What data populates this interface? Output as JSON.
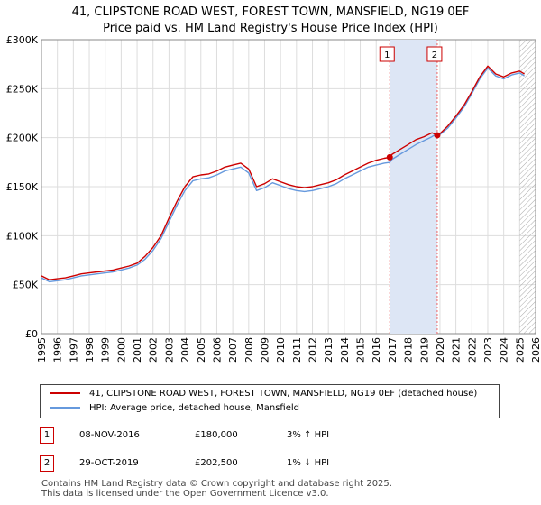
{
  "title": {
    "line1": "41, CLIPSTONE ROAD WEST, FOREST TOWN, MANSFIELD, NG19 0EF",
    "line2": "Price paid vs. HM Land Registry's House Price Index (HPI)"
  },
  "colors": {
    "property": "#cc0000",
    "hpi": "#6699dd",
    "shade": "#dde6f5",
    "grid": "#dddddd",
    "marker_line": "#ee6666"
  },
  "chart_data": {
    "type": "line",
    "title": "41, CLIPSTONE ROAD WEST, FOREST TOWN, MANSFIELD, NG19 0EF",
    "subtitle": "Price paid vs. HM Land Registry's House Price Index (HPI)",
    "xlabel": "",
    "ylabel": "",
    "xlim": [
      1995,
      2026
    ],
    "ylim": [
      0,
      300000
    ],
    "x_ticks": [
      "1995",
      "1996",
      "1997",
      "1998",
      "1999",
      "2000",
      "2001",
      "2002",
      "2003",
      "2004",
      "2005",
      "2006",
      "2007",
      "2008",
      "2009",
      "2010",
      "2011",
      "2012",
      "2013",
      "2014",
      "2015",
      "2016",
      "2017",
      "2018",
      "2019",
      "2020",
      "2021",
      "2022",
      "2023",
      "2024",
      "2025",
      "2026"
    ],
    "y_ticks": [
      {
        "value": 0,
        "label": "£0"
      },
      {
        "value": 50000,
        "label": "£50K"
      },
      {
        "value": 100000,
        "label": "£100K"
      },
      {
        "value": 150000,
        "label": "£150K"
      },
      {
        "value": 200000,
        "label": "£200K"
      },
      {
        "value": 250000,
        "label": "£250K"
      },
      {
        "value": 300000,
        "label": "£300K"
      }
    ],
    "grid": true,
    "series": [
      {
        "name": "41, CLIPSTONE ROAD WEST, FOREST TOWN, MANSFIELD, NG19 0EF (detached house)",
        "color": "#cc0000",
        "x": [
          1995.0,
          1995.5,
          1996.0,
          1996.5,
          1997.0,
          1997.5,
          1998.0,
          1998.5,
          1999.0,
          1999.5,
          2000.0,
          2000.5,
          2001.0,
          2001.5,
          2002.0,
          2002.5,
          2003.0,
          2003.5,
          2004.0,
          2004.5,
          2005.0,
          2005.5,
          2006.0,
          2006.5,
          2007.0,
          2007.5,
          2008.0,
          2008.5,
          2009.0,
          2009.5,
          2010.0,
          2010.5,
          2011.0,
          2011.5,
          2012.0,
          2012.5,
          2013.0,
          2013.5,
          2014.0,
          2014.5,
          2015.0,
          2015.5,
          2016.0,
          2016.5,
          2016.85,
          2017.0,
          2017.5,
          2018.0,
          2018.5,
          2019.0,
          2019.5,
          2019.83,
          2020.0,
          2020.5,
          2021.0,
          2021.5,
          2022.0,
          2022.5,
          2023.0,
          2023.5,
          2024.0,
          2024.5,
          2025.0,
          2025.3
        ],
        "values": [
          59000,
          55000,
          56000,
          57000,
          59000,
          61000,
          62000,
          63000,
          64000,
          65000,
          67000,
          69000,
          72000,
          79000,
          88000,
          100000,
          118000,
          135000,
          150000,
          160000,
          162000,
          163000,
          166000,
          170000,
          172000,
          174000,
          168000,
          150000,
          153000,
          158000,
          155000,
          152000,
          150000,
          149000,
          150000,
          152000,
          154000,
          157000,
          162000,
          166000,
          170000,
          174000,
          177000,
          179000,
          180000,
          183000,
          188000,
          193000,
          198000,
          201000,
          205000,
          202500,
          204000,
          212000,
          222000,
          233000,
          247000,
          262000,
          273000,
          265000,
          262000,
          266000,
          268000,
          265000
        ]
      },
      {
        "name": "HPI: Average price, detached house, Mansfield",
        "color": "#6699dd",
        "x": [
          1995.0,
          1995.5,
          1996.0,
          1996.5,
          1997.0,
          1997.5,
          1998.0,
          1998.5,
          1999.0,
          1999.5,
          2000.0,
          2000.5,
          2001.0,
          2001.5,
          2002.0,
          2002.5,
          2003.0,
          2003.5,
          2004.0,
          2004.5,
          2005.0,
          2005.5,
          2006.0,
          2006.5,
          2007.0,
          2007.5,
          2008.0,
          2008.5,
          2009.0,
          2009.5,
          2010.0,
          2010.5,
          2011.0,
          2011.5,
          2012.0,
          2012.5,
          2013.0,
          2013.5,
          2014.0,
          2014.5,
          2015.0,
          2015.5,
          2016.0,
          2016.5,
          2016.85,
          2017.0,
          2017.5,
          2018.0,
          2018.5,
          2019.0,
          2019.5,
          2019.83,
          2020.0,
          2020.5,
          2021.0,
          2021.5,
          2022.0,
          2022.5,
          2023.0,
          2023.5,
          2024.0,
          2024.5,
          2025.0,
          2025.3
        ],
        "values": [
          57000,
          53000,
          54000,
          55000,
          57000,
          59000,
          60000,
          61000,
          62000,
          63000,
          65000,
          67000,
          70000,
          76000,
          85000,
          97000,
          114000,
          131000,
          146000,
          156000,
          158000,
          159000,
          162000,
          166000,
          168000,
          170000,
          164000,
          146000,
          149000,
          154000,
          151000,
          148000,
          146000,
          145000,
          146000,
          148000,
          150000,
          153000,
          158000,
          162000,
          166000,
          170000,
          172000,
          174000,
          174800,
          178000,
          183000,
          188000,
          193000,
          197000,
          201000,
          204500,
          203000,
          210000,
          220000,
          231000,
          245000,
          260000,
          271000,
          263000,
          260000,
          264000,
          266000,
          263000
        ]
      }
    ],
    "shaded_range": [
      2016.85,
      2019.83
    ],
    "future_hatch_from": 2025.0,
    "annotations": [
      {
        "label": "1",
        "x": 2016.85,
        "y": 180000
      },
      {
        "label": "2",
        "x": 2019.83,
        "y": 202500
      }
    ]
  },
  "legend": {
    "property_label": "41, CLIPSTONE ROAD WEST, FOREST TOWN, MANSFIELD, NG19 0EF (detached house)",
    "hpi_label": "HPI: Average price, detached house, Mansfield"
  },
  "transactions": [
    {
      "num": "1",
      "date": "08-NOV-2016",
      "price": "£180,000",
      "hpi": "3% ↑ HPI"
    },
    {
      "num": "2",
      "date": "29-OCT-2019",
      "price": "£202,500",
      "hpi": "1% ↓ HPI"
    }
  ],
  "footer": {
    "line1": "Contains HM Land Registry data © Crown copyright and database right 2025.",
    "line2": "This data is licensed under the Open Government Licence v3.0."
  }
}
